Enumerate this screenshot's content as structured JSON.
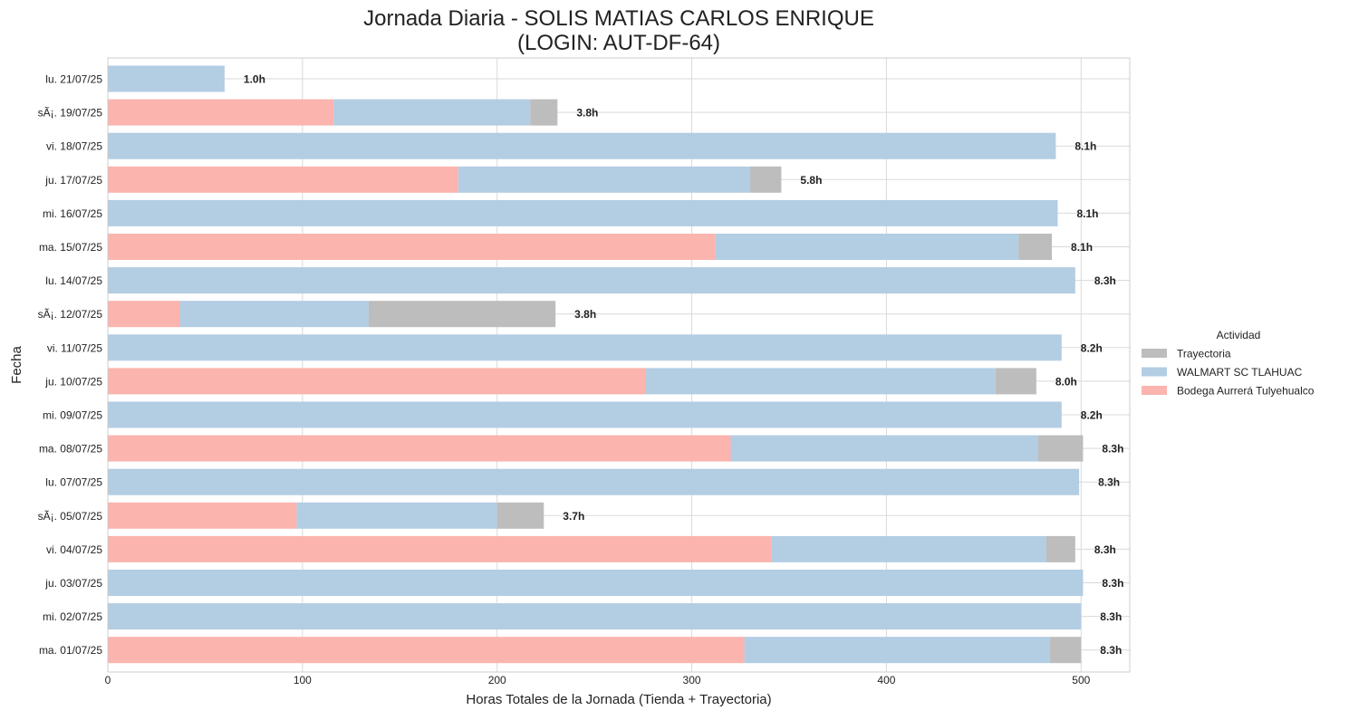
{
  "chart_data": {
    "type": "bar",
    "orientation": "horizontal",
    "stacked": true,
    "title": "Jornada Diaria - SOLIS MATIAS CARLOS ENRIQUE",
    "subtitle": "(LOGIN: AUT-DF-64)",
    "xlabel": "Horas Totales de la Jornada (Tienda + Trayectoria)",
    "ylabel": "Fecha",
    "xlim": [
      0,
      525
    ],
    "xticks": [
      0,
      100,
      200,
      300,
      400,
      500
    ],
    "grid": true,
    "legend_title": "Actividad",
    "legend_position": "right",
    "legend": [
      {
        "label": "Trayectoria",
        "color": "#bdbdbd"
      },
      {
        "label": "WALMART SC TLAHUAC",
        "color": "#b3cde3"
      },
      {
        "label": "Bodega Aurrerá Tulyehualco",
        "color": "#fbb4ae"
      }
    ],
    "categories": [
      "lu. 21/07/25",
      "sÃ¡. 19/07/25",
      "vi. 18/07/25",
      "ju. 17/07/25",
      "mi. 16/07/25",
      "ma. 15/07/25",
      "lu. 14/07/25",
      "sÃ¡. 12/07/25",
      "vi. 11/07/25",
      "ju. 10/07/25",
      "mi. 09/07/25",
      "ma. 08/07/25",
      "lu. 07/07/25",
      "sÃ¡. 05/07/25",
      "vi. 04/07/25",
      "ju. 03/07/25",
      "mi. 02/07/25",
      "ma. 01/07/25"
    ],
    "series": [
      {
        "name": "Bodega Aurrerá Tulyehualco",
        "color": "#fbb4ae",
        "values": [
          0,
          116,
          0,
          180,
          0,
          312,
          0,
          37,
          0,
          276,
          0,
          320,
          0,
          97,
          341,
          0,
          0,
          327
        ]
      },
      {
        "name": "WALMART SC TLAHUAC",
        "color": "#b3cde3",
        "values": [
          60,
          101,
          487,
          150,
          488,
          156,
          497,
          97,
          490,
          180,
          490,
          158,
          499,
          103,
          141,
          501,
          500,
          157
        ]
      },
      {
        "name": "Trayectoria",
        "color": "#bdbdbd",
        "values": [
          0,
          14,
          0,
          16,
          0,
          17,
          0,
          96,
          0,
          21,
          0,
          23,
          0,
          24,
          15,
          0,
          0,
          16
        ]
      }
    ],
    "bar_labels": [
      "1.0h",
      "3.8h",
      "8.1h",
      "5.8h",
      "8.1h",
      "8.1h",
      "8.3h",
      "3.8h",
      "8.2h",
      "8.0h",
      "8.2h",
      "8.3h",
      "8.3h",
      "3.7h",
      "8.3h",
      "8.3h",
      "8.3h",
      "8.3h"
    ]
  }
}
